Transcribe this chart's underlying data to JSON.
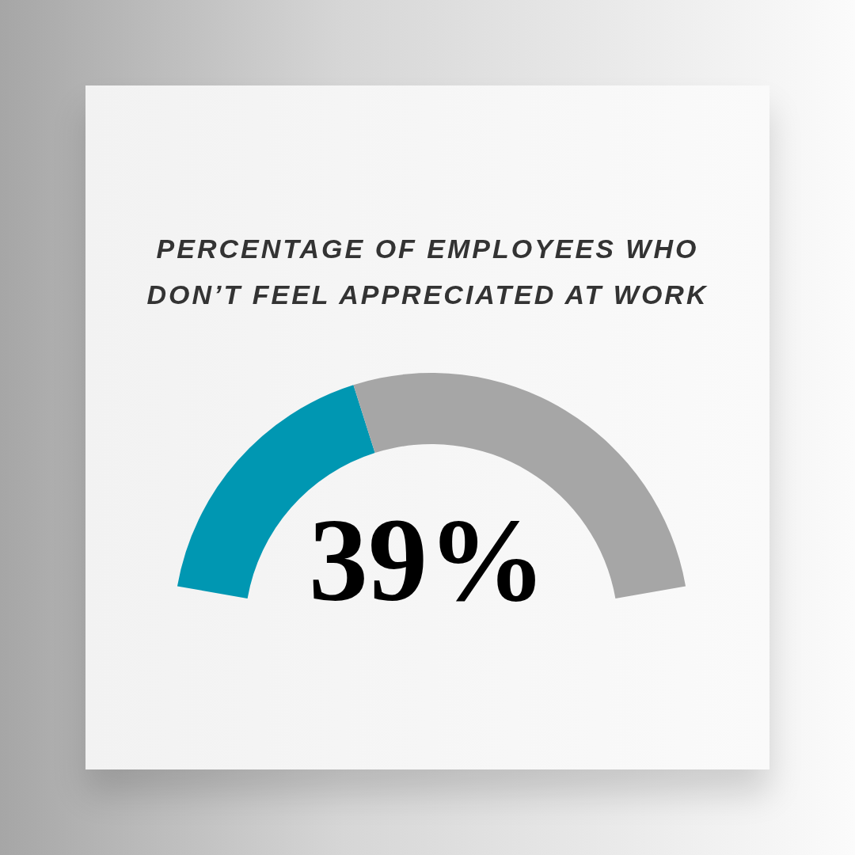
{
  "chart_data": {
    "type": "donut",
    "title": "PERCENTAGE OF EMPLOYEES WHO DON’T FEEL APPRECIATED AT WORK",
    "categories": [
      null,
      null
    ],
    "values": [
      39,
      61
    ],
    "colors": [
      "#0097b2",
      "#a6a6a6"
    ],
    "value_labels": [
      "39%",
      null
    ]
  }
}
